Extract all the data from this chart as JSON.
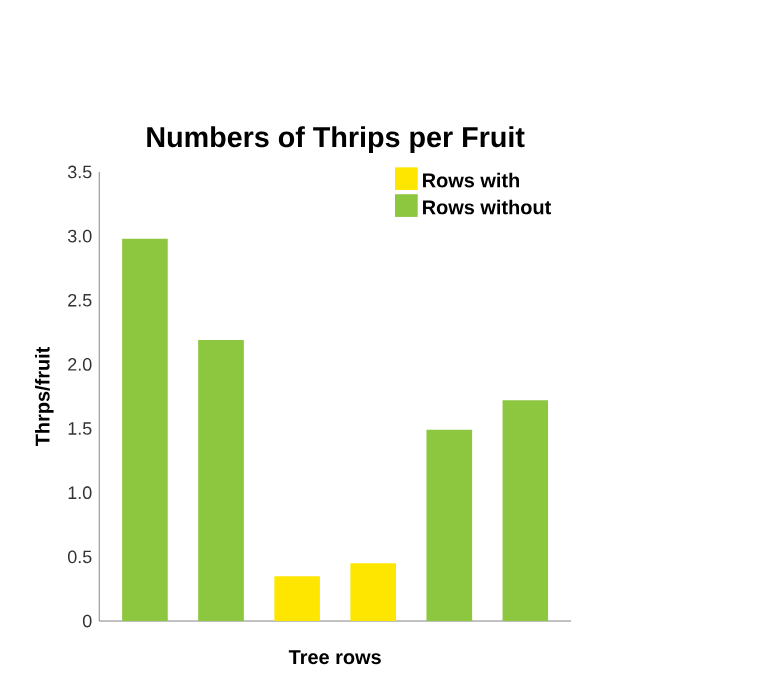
{
  "chart_data": {
    "type": "bar",
    "title": "Numbers of Thrips per Fruit",
    "xlabel": "Tree rows",
    "ylabel": "Thrps/fruit",
    "categories": [
      null,
      null,
      null,
      null,
      null,
      null
    ],
    "series": [
      {
        "name": "Rows with",
        "color": "#ffe600",
        "values": [
          null,
          null,
          0.35,
          0.45,
          null,
          null
        ]
      },
      {
        "name": "Rows without",
        "color": "#8dc63f",
        "values": [
          2.98,
          2.19,
          null,
          null,
          1.49,
          1.72
        ]
      }
    ],
    "ylim": [
      0,
      3.5
    ],
    "yticks": [
      0,
      {
        "value": 0.5,
        "label": "0.5"
      },
      {
        "value": 1,
        "label": "1.0"
      },
      {
        "value": 1.5,
        "label": "1.5"
      },
      {
        "value": 2,
        "label": "2.0"
      },
      {
        "value": 2.5,
        "label": "2.5"
      },
      {
        "value": 3,
        "label": "3.0"
      },
      {
        "value": 3.5,
        "label": "3.5"
      }
    ],
    "legend": "top right",
    "grid": false
  }
}
